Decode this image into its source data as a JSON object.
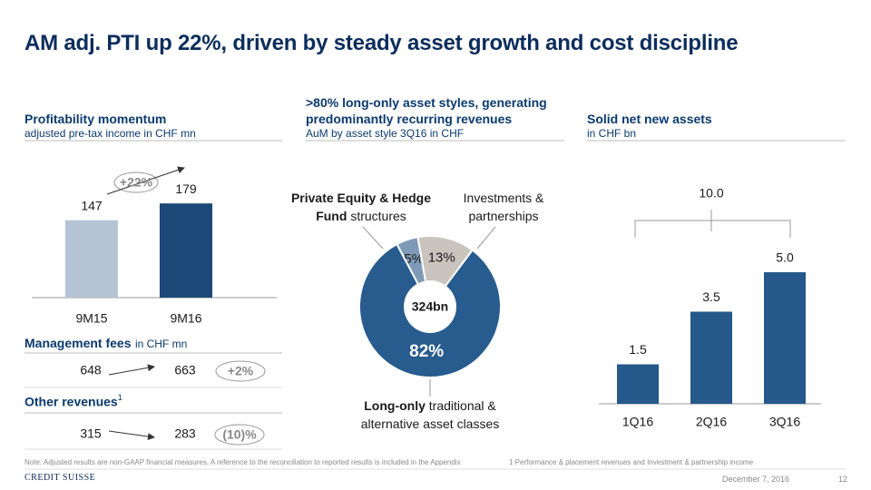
{
  "title": "AM adj. PTI up 22%, driven by steady asset growth and cost discipline",
  "chart_data": [
    {
      "type": "bar",
      "title": "Profitability momentum",
      "subtitle": "adjusted pre-tax income in CHF mn",
      "categories": [
        "9M15",
        "9M16"
      ],
      "values": [
        147,
        179
      ],
      "colors": [
        "#b5c4d4",
        "#1c4877"
      ],
      "annotation": "+22%"
    },
    {
      "type": "pie",
      "title": ">80% long-only asset styles, generating predominantly recurring revenues",
      "subtitle": "AuM by asset style 3Q16 in CHF",
      "center_label": "324bn",
      "labels": [
        {
          "bold": "Private Equity & Hedge Fund",
          "text": "structures"
        },
        {
          "text": "Investments & partnerships"
        },
        {
          "bold": "Long-only",
          "text": "traditional & alternative asset classes"
        }
      ],
      "values": [
        5,
        13,
        82
      ],
      "value_labels": [
        "5%",
        "13%",
        "82%"
      ],
      "colors": [
        "#7e9ab7",
        "#c9c4bd",
        "#285b8e"
      ],
      "value_label_colors": [
        "#1a1a1a",
        "#1a1a1a",
        "#ffffff"
      ]
    },
    {
      "type": "bar",
      "title": "Solid net new assets",
      "subtitle": "in CHF bn",
      "categories": [
        "1Q16",
        "2Q16",
        "3Q16"
      ],
      "values": [
        1.5,
        3.5,
        5
      ],
      "value_labels": [
        "1.5",
        "3.5",
        "5.0"
      ],
      "color": "#25588b",
      "annotation": "10.0"
    }
  ],
  "management_fees": {
    "title": "Management fees",
    "unit": "in CHF mn",
    "from": 648,
    "to": 663,
    "change": "+2%"
  },
  "other_revenues": {
    "title": "Other revenues",
    "footnote_mark": "1",
    "from": 315,
    "to": 283,
    "change": "(10)%"
  },
  "footer": {
    "note": "Note: Adjusted results are non-GAAP financial measures. A reference to the reconciliation to reported results is included in the Appendix",
    "footnote": "1 Performance & placement revenues and Investment & partnership income",
    "logo": "CREDIT SUISSE",
    "date": "December 7, 2016",
    "page": "12"
  }
}
